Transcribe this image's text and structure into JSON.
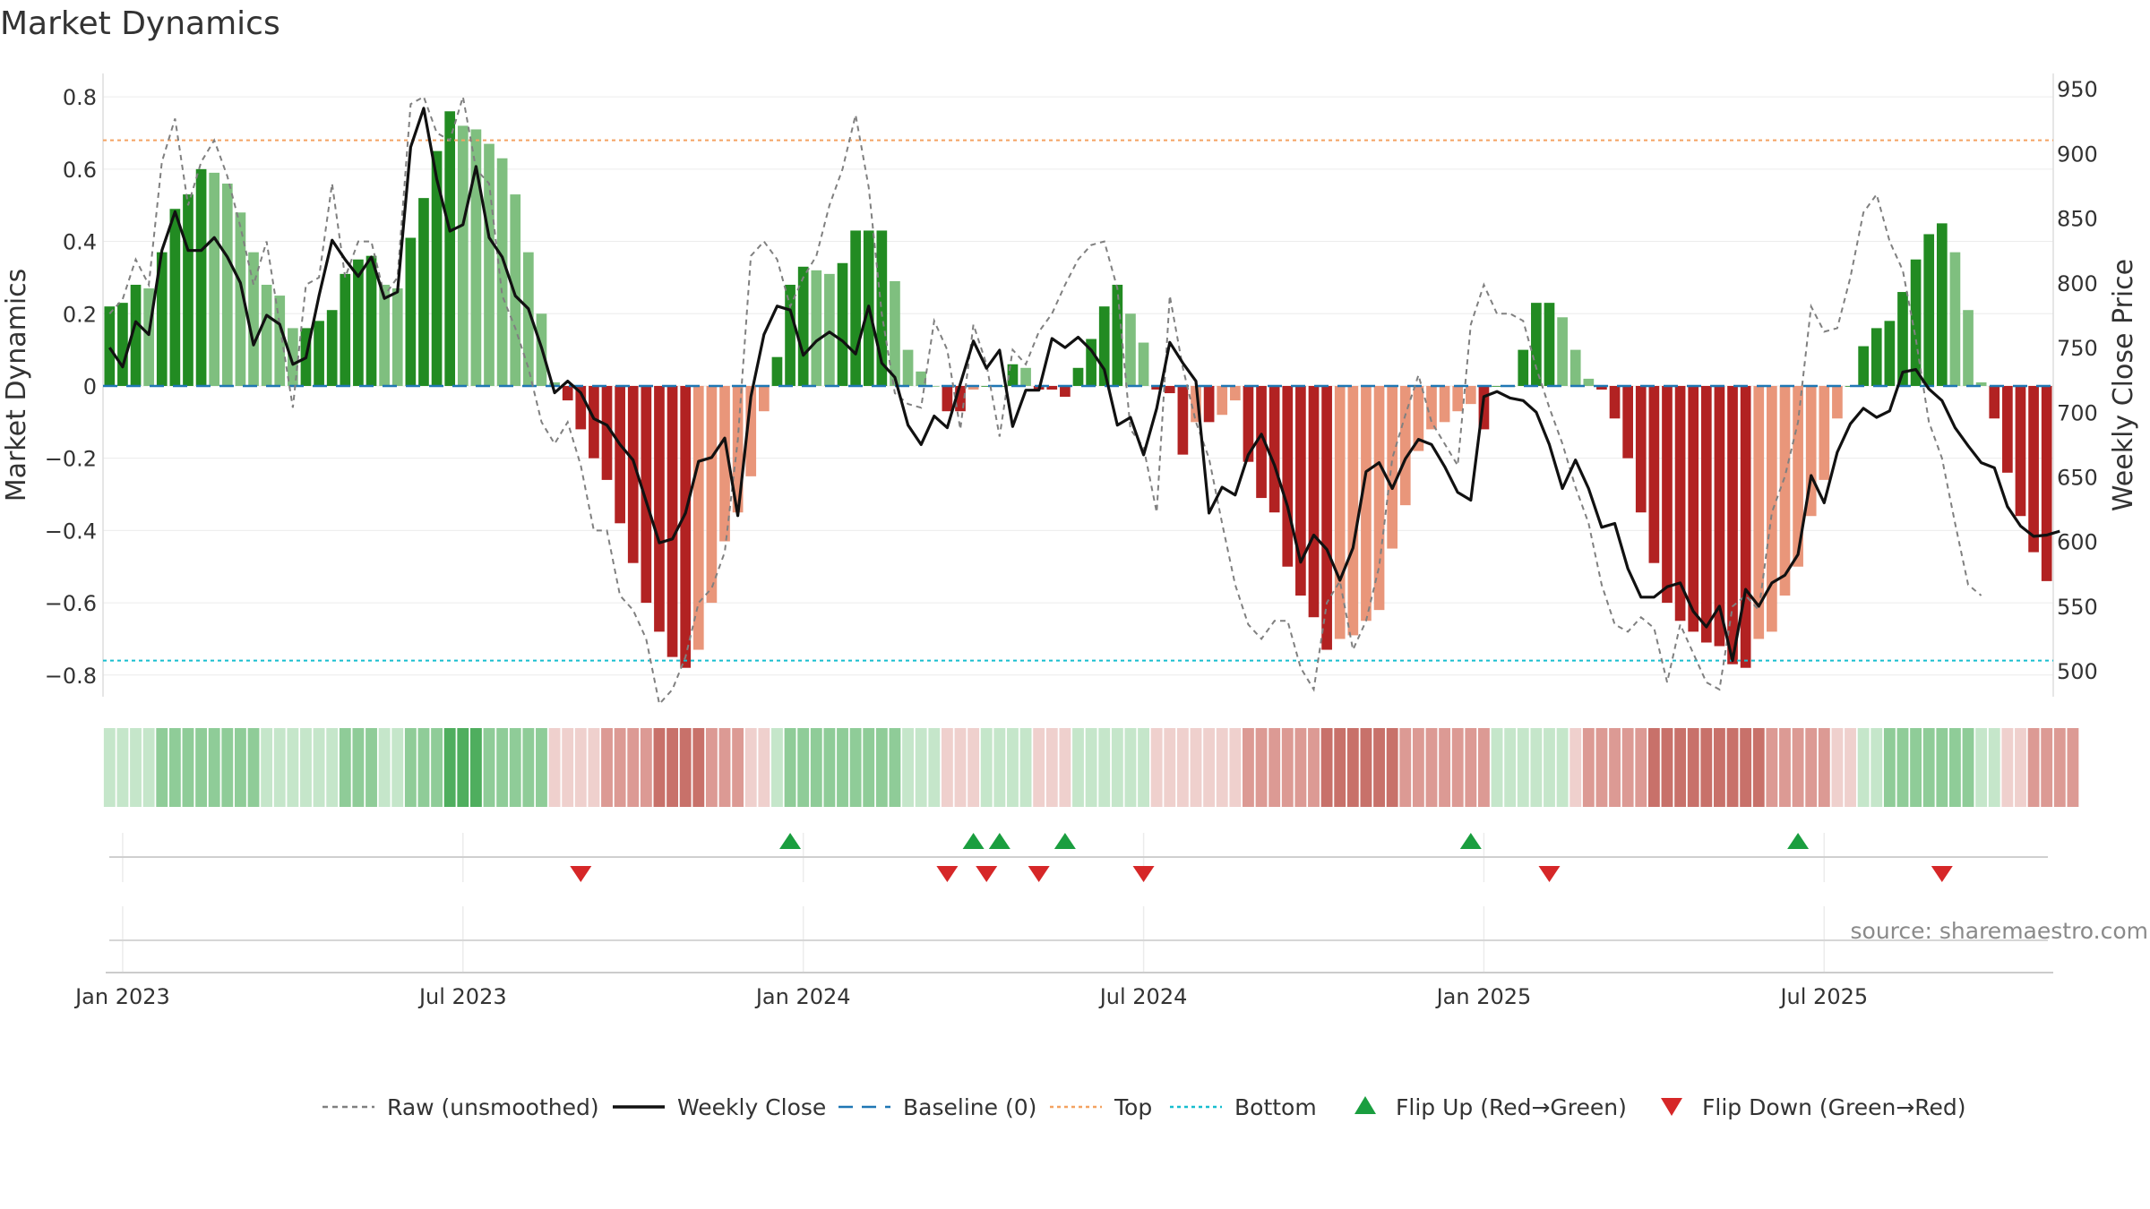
{
  "chart_data": {
    "type": "bar",
    "title": "Market Dynamics",
    "ylabel_left": "Market Dynamics",
    "ylabel_right": "Weekly Close Price",
    "ylim_left": [
      -0.86,
      0.84
    ],
    "ylim_right": [
      480,
      955
    ],
    "yticks_left": [
      "0.8",
      "0.6",
      "0.4",
      "0.2",
      "0",
      "−0.2",
      "−0.4",
      "−0.6",
      "−0.8"
    ],
    "yticks_right": [
      "950",
      "900",
      "850",
      "800",
      "750",
      "700",
      "650",
      "600",
      "550",
      "500"
    ],
    "xticks": [
      {
        "label": "Jan 2023",
        "week": 1
      },
      {
        "label": "Jul 2023",
        "week": 27
      },
      {
        "label": "Jan 2024",
        "week": 53
      },
      {
        "label": "Jul 2024",
        "week": 79
      },
      {
        "label": "Jan 2025",
        "week": 105
      },
      {
        "label": "Jul 2025",
        "week": 131
      }
    ],
    "top_threshold": 0.68,
    "bottom_threshold": -0.76,
    "baseline": 0,
    "colors": {
      "strong_up": "#228b22",
      "weak_up": "#7fbf7f",
      "strong_down": "#b22222",
      "weak_down": "#e9967a",
      "close_line": "#111111",
      "raw_line": "#808080",
      "baseline": "#1f77b4",
      "top": "#f4a261",
      "bottom": "#17becf",
      "flip_up": "#1a9e3f",
      "flip_down": "#d62728"
    },
    "momentum": [
      0.22,
      0.23,
      0.28,
      0.27,
      0.37,
      0.49,
      0.53,
      0.6,
      0.59,
      0.56,
      0.48,
      0.37,
      0.28,
      0.25,
      0.16,
      0.16,
      0.18,
      0.21,
      0.31,
      0.35,
      0.36,
      0.28,
      0.27,
      0.41,
      0.52,
      0.65,
      0.76,
      0.72,
      0.71,
      0.67,
      0.63,
      0.53,
      0.37,
      0.2,
      0.01,
      -0.04,
      -0.12,
      -0.2,
      -0.26,
      -0.38,
      -0.49,
      -0.6,
      -0.68,
      -0.75,
      -0.78,
      -0.73,
      -0.6,
      -0.43,
      -0.35,
      -0.25,
      -0.07,
      0.08,
      0.28,
      0.33,
      0.32,
      0.31,
      0.34,
      0.43,
      0.43,
      0.43,
      0.29,
      0.1,
      0.04,
      0.0,
      -0.07,
      -0.07,
      -0.01,
      0.0,
      0.0,
      0.06,
      0.05,
      -0.01,
      -0.01,
      -0.03,
      0.05,
      0.13,
      0.22,
      0.28,
      0.2,
      0.12,
      -0.01,
      -0.02,
      -0.19,
      -0.1,
      -0.1,
      -0.08,
      -0.04,
      -0.21,
      -0.31,
      -0.35,
      -0.5,
      -0.58,
      -0.64,
      -0.73,
      -0.7,
      -0.69,
      -0.65,
      -0.62,
      -0.45,
      -0.33,
      -0.18,
      -0.12,
      -0.1,
      -0.07,
      -0.05,
      -0.12,
      0.0,
      0.0,
      0.1,
      0.23,
      0.23,
      0.19,
      0.1,
      0.02,
      -0.01,
      -0.09,
      -0.2,
      -0.35,
      -0.49,
      -0.6,
      -0.65,
      -0.68,
      -0.71,
      -0.72,
      -0.77,
      -0.78,
      -0.7,
      -0.68,
      -0.58,
      -0.5,
      -0.36,
      -0.26,
      -0.09,
      0.0,
      0.11,
      0.16,
      0.18,
      0.26,
      0.35,
      0.42,
      0.45,
      0.37,
      0.21,
      0.01,
      -0.09,
      -0.24,
      -0.36,
      -0.46,
      -0.54
    ],
    "raw": [
      0.2,
      0.24,
      0.35,
      0.28,
      0.62,
      0.74,
      0.5,
      0.62,
      0.68,
      0.58,
      0.44,
      0.28,
      0.4,
      0.17,
      -0.06,
      0.28,
      0.3,
      0.56,
      0.3,
      0.4,
      0.4,
      0.25,
      0.3,
      0.78,
      0.8,
      0.7,
      0.68,
      0.8,
      0.6,
      0.56,
      0.25,
      0.16,
      0.05,
      -0.1,
      -0.16,
      -0.1,
      -0.22,
      -0.4,
      -0.4,
      -0.58,
      -0.62,
      -0.7,
      -0.88,
      -0.84,
      -0.75,
      -0.6,
      -0.56,
      -0.46,
      -0.15,
      0.36,
      0.4,
      0.35,
      0.22,
      0.3,
      0.36,
      0.5,
      0.6,
      0.75,
      0.55,
      0.2,
      -0.02,
      -0.05,
      -0.06,
      0.18,
      0.1,
      -0.12,
      0.17,
      0.06,
      -0.14,
      0.1,
      0.06,
      0.15,
      0.2,
      0.28,
      0.35,
      0.39,
      0.4,
      0.27,
      -0.12,
      -0.17,
      -0.35,
      0.25,
      0.05,
      -0.1,
      -0.2,
      -0.38,
      -0.55,
      -0.66,
      -0.7,
      -0.65,
      -0.65,
      -0.78,
      -0.84,
      -0.6,
      -0.54,
      -0.73,
      -0.65,
      -0.5,
      -0.2,
      -0.08,
      0.03,
      -0.1,
      -0.16,
      -0.22,
      0.17,
      0.28,
      0.2,
      0.2,
      0.18,
      0.05,
      -0.06,
      -0.16,
      -0.28,
      -0.38,
      -0.55,
      -0.66,
      -0.68,
      -0.64,
      -0.67,
      -0.82,
      -0.66,
      -0.74,
      -0.82,
      -0.84,
      -0.61,
      -0.58,
      -0.62,
      -0.35,
      -0.25,
      -0.1,
      0.22,
      0.15,
      0.16,
      0.3,
      0.48,
      0.53,
      0.4,
      0.32,
      0.13,
      -0.1,
      -0.2,
      -0.38,
      -0.55,
      -0.58
    ],
    "close": [
      750,
      735,
      770,
      760,
      825,
      855,
      825,
      825,
      835,
      820,
      800,
      752,
      775,
      768,
      737,
      742,
      790,
      833,
      818,
      805,
      820,
      788,
      793,
      905,
      935,
      880,
      840,
      845,
      890,
      835,
      820,
      790,
      780,
      750,
      715,
      724,
      715,
      695,
      690,
      675,
      663,
      631,
      599,
      602,
      622,
      662,
      665,
      680,
      620,
      712,
      760,
      782,
      779,
      744,
      755,
      762,
      755,
      745,
      782,
      738,
      727,
      690,
      675,
      697,
      688,
      722,
      755,
      734,
      748,
      689,
      717,
      717,
      757,
      750,
      758,
      748,
      733,
      690,
      696,
      667,
      703,
      754,
      738,
      724,
      622,
      642,
      636,
      667,
      683,
      659,
      627,
      584,
      605,
      594,
      570,
      595,
      654,
      661,
      641,
      664,
      679,
      675,
      658,
      638,
      632,
      712,
      716,
      711,
      709,
      700,
      675,
      641,
      663,
      641,
      611,
      614,
      579,
      557,
      557,
      565,
      568,
      546,
      534,
      550,
      508,
      563,
      550,
      568,
      574,
      590,
      651,
      630,
      669,
      691,
      703,
      696,
      701,
      731,
      733,
      718,
      709,
      688,
      674,
      661,
      657,
      627,
      612,
      604,
      605,
      608
    ],
    "flips_up": [
      52,
      66,
      68,
      73,
      104,
      129
    ],
    "flips_down": [
      36,
      64,
      67,
      71,
      79,
      110,
      140
    ],
    "heat_strip": [
      1,
      1,
      1,
      1,
      2,
      2,
      2,
      2,
      2,
      2,
      2,
      2,
      1,
      1,
      1,
      1,
      1,
      1,
      2,
      2,
      2,
      1,
      1,
      2,
      2,
      2,
      3,
      3,
      3,
      2,
      2,
      2,
      2,
      2,
      -1,
      -1,
      -1,
      -1,
      -2,
      -2,
      -2,
      -2,
      -3,
      -3,
      -3,
      -3,
      -2,
      -2,
      -2,
      -1,
      -1,
      1,
      2,
      2,
      2,
      2,
      2,
      2,
      2,
      2,
      2,
      1,
      1,
      1,
      -1,
      -1,
      -1,
      1,
      1,
      1,
      1,
      -1,
      -1,
      -1,
      1,
      1,
      1,
      1,
      1,
      1,
      -1,
      -1,
      -1,
      -1,
      -1,
      -1,
      -1,
      -2,
      -2,
      -2,
      -2,
      -2,
      -2,
      -3,
      -3,
      -3,
      -3,
      -3,
      -3,
      -2,
      -2,
      -2,
      -2,
      -2,
      -2,
      -2,
      1,
      1,
      1,
      1,
      1,
      1,
      -1,
      -2,
      -2,
      -2,
      -2,
      -2,
      -3,
      -3,
      -3,
      -3,
      -3,
      -3,
      -3,
      -3,
      -3,
      -2,
      -2,
      -2,
      -2,
      -2,
      -1,
      -1,
      1,
      1,
      2,
      2,
      2,
      2,
      2,
      2,
      2,
      1,
      1,
      -1,
      -1,
      -2,
      -2,
      -2,
      -2
    ]
  },
  "legend": [
    {
      "label": "Raw (unsmoothed)",
      "kind": "dashed",
      "color": "#808080"
    },
    {
      "label": "Weekly Close",
      "kind": "solid",
      "color": "#111111"
    },
    {
      "label": "Baseline (0)",
      "kind": "longdash",
      "color": "#1f77b4"
    },
    {
      "label": "Top",
      "kind": "dotted",
      "color": "#f4a261"
    },
    {
      "label": "Bottom",
      "kind": "dotted",
      "color": "#17becf"
    },
    {
      "label": "Flip Up (Red→Green)",
      "kind": "tri-up",
      "color": "#1a9e3f"
    },
    {
      "label": "Flip Down (Green→Red)",
      "kind": "tri-down",
      "color": "#d62728"
    }
  ],
  "source": "source: sharemaestro.com"
}
